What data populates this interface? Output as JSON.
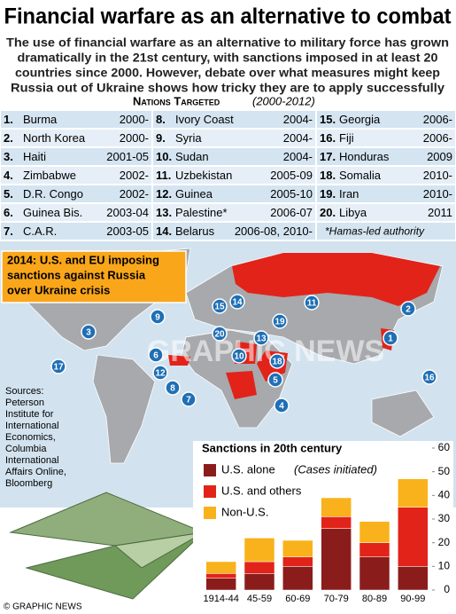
{
  "header": {
    "title": "Financial warfare as an alternative to combat",
    "subtitle": [
      "The use of financial warfare as an alternative to military force has grown",
      "dramatically in the 21st century, with sanctions imposed in at least 20",
      "countries since 2000. However, debate over what measures might keep",
      "Russia out of Ukraine shows how tricky they are to apply successfully"
    ]
  },
  "table": {
    "title": "Nations Targeted",
    "period": "(2000-2012)",
    "columns": [
      [
        {
          "num": "1.",
          "name": "Burma",
          "years": "2000-"
        },
        {
          "num": "2.",
          "name": "North Korea",
          "years": "2000-"
        },
        {
          "num": "3.",
          "name": "Haiti",
          "years": "2001-05"
        },
        {
          "num": "4.",
          "name": "Zimbabwe",
          "years": "2002-"
        },
        {
          "num": "5.",
          "name": "D.R. Congo",
          "years": "2002-"
        },
        {
          "num": "6.",
          "name": "Guinea Bis.",
          "years": "2003-04"
        },
        {
          "num": "7.",
          "name": "C.A.R.",
          "years": "2003-05"
        }
      ],
      [
        {
          "num": "8.",
          "name": "Ivory Coast",
          "years": "2004-"
        },
        {
          "num": "9.",
          "name": "Syria",
          "years": "2004-"
        },
        {
          "num": "10.",
          "name": "Sudan",
          "years": "2004-"
        },
        {
          "num": "11.",
          "name": "Uzbekistan",
          "years": "2005-09"
        },
        {
          "num": "12.",
          "name": "Guinea",
          "years": "2005-10"
        },
        {
          "num": "13.",
          "name": "Palestine*",
          "years": "2006-07"
        },
        {
          "num": "14.",
          "name": "Belarus",
          "years": "2006-08, 2010-"
        }
      ],
      [
        {
          "num": "15.",
          "name": "Georgia",
          "years": "2006-"
        },
        {
          "num": "16.",
          "name": "Fiji",
          "years": "2006-"
        },
        {
          "num": "17.",
          "name": "Honduras",
          "years": "2009"
        },
        {
          "num": "18.",
          "name": "Somalia",
          "years": "2010-"
        },
        {
          "num": "19.",
          "name": "Iran",
          "years": "2010-"
        },
        {
          "num": "20.",
          "name": "Libya",
          "years": "2011"
        }
      ]
    ],
    "note": "*Hamas-led authority"
  },
  "map": {
    "callout": [
      "2014: U.S. and EU imposing",
      "sanctions against Russia",
      "over Ukraine crisis"
    ],
    "markers": [
      "1",
      "2",
      "3",
      "4",
      "5",
      "6",
      "7",
      "8",
      "9",
      "10",
      "11",
      "12",
      "13",
      "14",
      "15",
      "16",
      "17",
      "18",
      "19",
      "20"
    ],
    "watermark": "GRAPHIC NEWS"
  },
  "sources": [
    "Sources:",
    "Peterson",
    "Institute for",
    "International",
    "Economics,",
    "Columbia",
    "International",
    "Affairs Online,",
    "Bloomberg"
  ],
  "chart_data": {
    "type": "stacked_bar",
    "title": "Sanctions in 20th century",
    "legend_note": "(Cases initiated)",
    "categories": [
      "1914-44",
      "45-59",
      "60-69",
      "70-79",
      "80-89",
      "90-99"
    ],
    "series": [
      {
        "name": "U.S. alone",
        "color": "#8b1c1c",
        "values": [
          5,
          7,
          10,
          26,
          14,
          10
        ]
      },
      {
        "name": "U.S. and others",
        "color": "#e2231a",
        "values": [
          2,
          5,
          4,
          5,
          6,
          25
        ]
      },
      {
        "name": "Non-U.S.",
        "color": "#f9b21b",
        "values": [
          5,
          10,
          7,
          8,
          9,
          12
        ]
      }
    ],
    "ylim": [
      0,
      60
    ],
    "yticks": [
      0,
      10,
      20,
      30,
      40,
      50,
      60
    ]
  },
  "footer": "© GRAPHIC NEWS"
}
